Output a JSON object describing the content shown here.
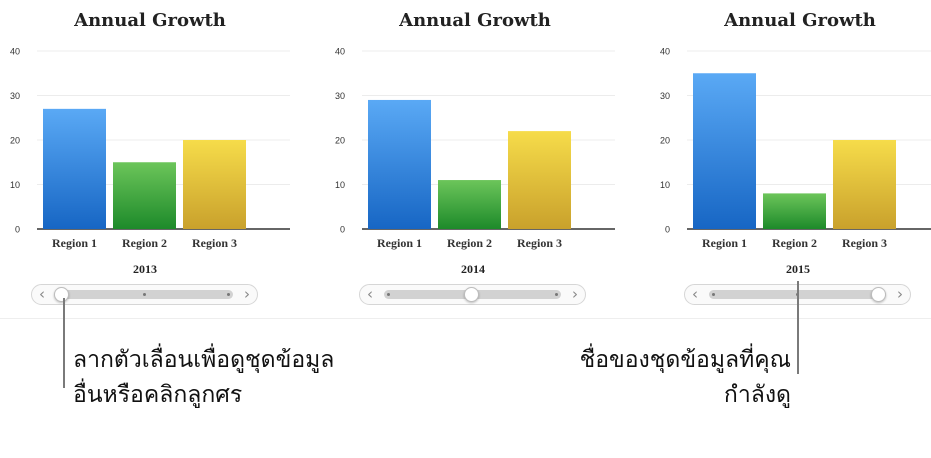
{
  "chart_data": [
    {
      "type": "bar",
      "title": "Annual Growth",
      "categories": [
        "Region 1",
        "Region 2",
        "Region 3"
      ],
      "values": [
        27,
        15,
        20
      ],
      "ylim": [
        0,
        40
      ],
      "yticks": [
        0,
        10,
        20,
        30,
        40
      ],
      "slider_label": "2013",
      "slider_position": 0.0
    },
    {
      "type": "bar",
      "title": "Annual Growth",
      "categories": [
        "Region 1",
        "Region 2",
        "Region 3"
      ],
      "values": [
        29,
        11,
        22
      ],
      "ylim": [
        0,
        40
      ],
      "yticks": [
        0,
        10,
        20,
        30,
        40
      ],
      "slider_label": "2014",
      "slider_position": 0.5
    },
    {
      "type": "bar",
      "title": "Annual Growth",
      "categories": [
        "Region 1",
        "Region 2",
        "Region 3"
      ],
      "values": [
        35,
        8,
        20
      ],
      "ylim": [
        0,
        40
      ],
      "yticks": [
        0,
        10,
        20,
        30,
        40
      ],
      "slider_label": "2015",
      "slider_position": 1.0
    }
  ],
  "colors": {
    "region1": [
      "#5aa9f5",
      "#1766c4"
    ],
    "region2": [
      "#6cc55a",
      "#1d8a2a"
    ],
    "region3": [
      "#f6dc4a",
      "#c9a12c"
    ]
  },
  "slider": {
    "prev_icon": "‹",
    "next_icon": "›"
  },
  "callouts": {
    "left_line1": "ลากตัวเลื่อนเพื่อดูชุดข้อมูล",
    "left_line2": "อื่นหรือคลิกลูกศร",
    "right_line1": "ชื่อของชุดข้อมูลที่คุณ",
    "right_line2": "กำลังดู"
  }
}
